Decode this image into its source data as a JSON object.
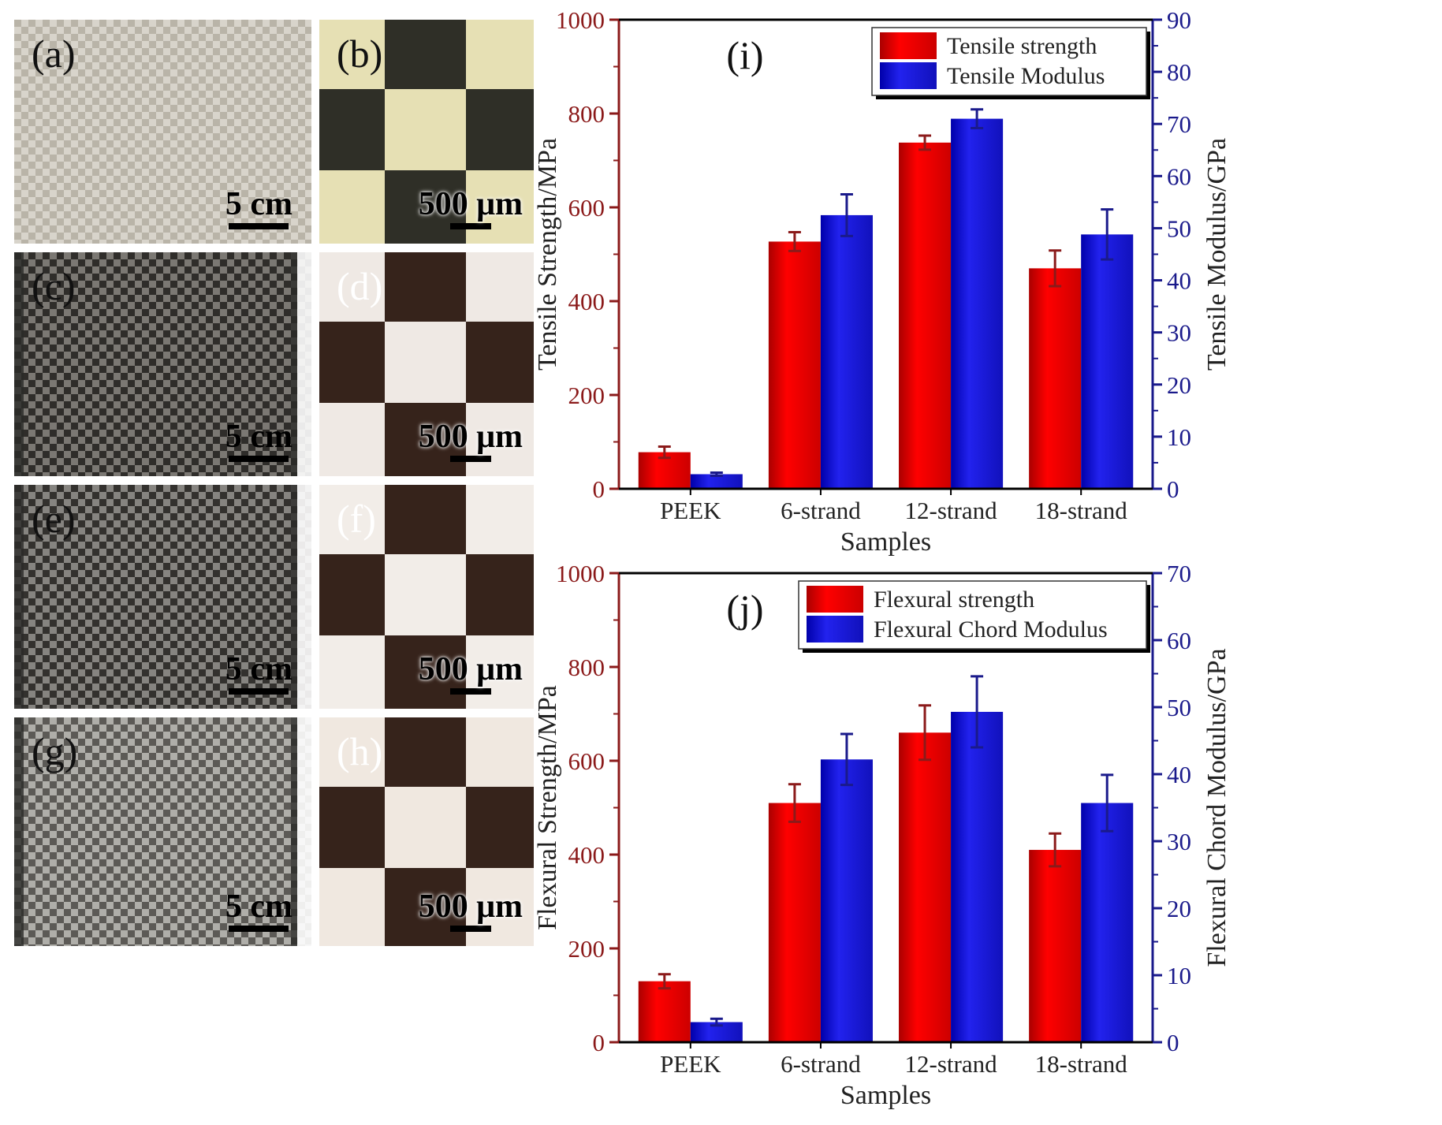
{
  "panels": [
    {
      "id": "a",
      "label": "(a)",
      "scale": "5 cm",
      "base": "#cfcbc1",
      "c1": "#b9b4a8",
      "c2": "#dcd8cf"
    },
    {
      "id": "b",
      "label": "(b)",
      "scale": "500 μm",
      "base": "#3e3d33",
      "c1": "#e6e0b4",
      "c2": "#2a2a22"
    },
    {
      "id": "c",
      "label": "(c)",
      "scale": "5 cm",
      "base": "#4d4b47",
      "c1": "#2f2d2a",
      "c2": "#8f8c86"
    },
    {
      "id": "d",
      "label": "(d)",
      "scale": "500 μm",
      "base": "#4a3327",
      "c1": "#efe9e4",
      "c2": "#2e1d15"
    },
    {
      "id": "e",
      "label": "(e)",
      "scale": "5 cm",
      "base": "#55534f",
      "c1": "#33312e",
      "c2": "#9c9994"
    },
    {
      "id": "f",
      "label": "(f)",
      "scale": "500 μm",
      "base": "#4a3327",
      "c1": "#f2ede8",
      "c2": "#2e1d15"
    },
    {
      "id": "g",
      "label": "(g)",
      "scale": "5 cm",
      "base": "#8a8884",
      "c1": "#5c5a56",
      "c2": "#c0beb9"
    },
    {
      "id": "h",
      "label": "(h)",
      "scale": "500 μm",
      "base": "#4a3327",
      "c1": "#f0e8e0",
      "c2": "#2e1d15"
    }
  ],
  "colors": {
    "red": "#ff0000",
    "blue": "#2222ee",
    "left_axis": "#8b1a1a",
    "right_axis": "#1a1a8b",
    "err_red": "#8b1a1a",
    "err_blue": "#1a1a8b"
  },
  "chart_data": [
    {
      "type": "bar",
      "panel_label": "(i)",
      "categories": [
        "PEEK",
        "6-strand",
        "12-strand",
        "18-strand"
      ],
      "xlabel": "Samples",
      "ylabel": "Tensile Strength/MPa",
      "ylabel_right": "Tensile Modulus/GPa",
      "ylim": [
        0,
        1000
      ],
      "ylim_right": [
        0,
        90
      ],
      "yticks": [
        0,
        200,
        400,
        600,
        800,
        1000
      ],
      "yticks_right": [
        0,
        10,
        20,
        30,
        40,
        50,
        60,
        70,
        80,
        90
      ],
      "series": [
        {
          "name": "Tensile strength",
          "axis": "left",
          "values": [
            78,
            527,
            738,
            470
          ],
          "errors": [
            12,
            20,
            15,
            38
          ]
        },
        {
          "name": "Tensile Modulus",
          "axis": "right",
          "values": [
            2.8,
            52.5,
            71.0,
            48.8
          ],
          "errors": [
            0.3,
            4.0,
            1.8,
            4.8
          ]
        }
      ]
    },
    {
      "type": "bar",
      "panel_label": "(j)",
      "categories": [
        "PEEK",
        "6-strand",
        "12-strand",
        "18-strand"
      ],
      "xlabel": "Samples",
      "ylabel": "Flexural Strength/MPa",
      "ylabel_right": "Flexural Chord Modulus/GPa",
      "ylim": [
        0,
        1000
      ],
      "ylim_right": [
        0,
        70
      ],
      "yticks": [
        0,
        200,
        400,
        600,
        800,
        1000
      ],
      "yticks_right": [
        0,
        10,
        20,
        30,
        40,
        50,
        60,
        70
      ],
      "series": [
        {
          "name": "Flexural strength",
          "axis": "left",
          "values": [
            130,
            510,
            660,
            410
          ],
          "errors": [
            15,
            40,
            58,
            35
          ]
        },
        {
          "name": "Flexural Chord Modulus",
          "axis": "right",
          "values": [
            3.0,
            42.2,
            49.3,
            35.7
          ],
          "errors": [
            0.5,
            3.8,
            5.3,
            4.2
          ]
        }
      ]
    }
  ]
}
